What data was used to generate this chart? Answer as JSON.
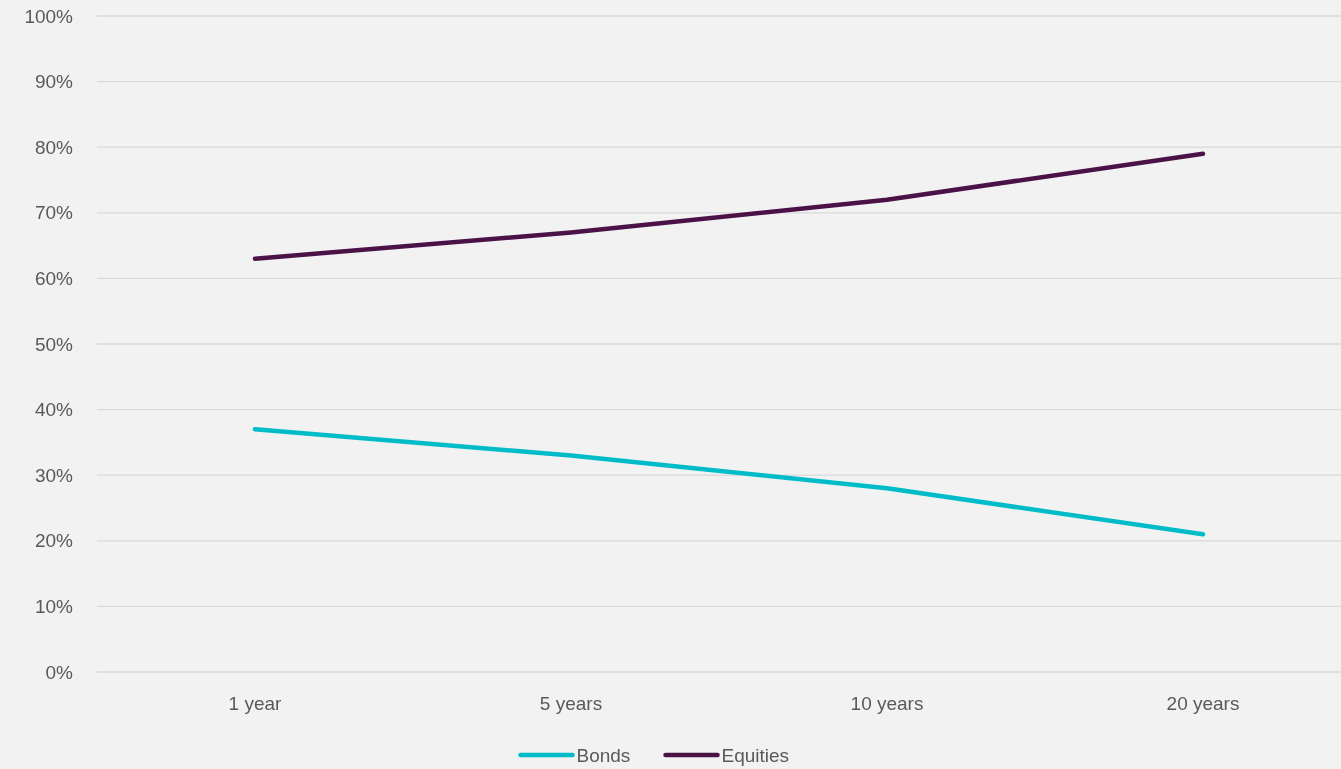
{
  "chart_data": {
    "type": "line",
    "categories": [
      "1 year",
      "5 years",
      "10 years",
      "20 years"
    ],
    "series": [
      {
        "name": "Bonds",
        "color": "#00bcc9",
        "values": [
          37,
          33,
          28,
          21
        ]
      },
      {
        "name": "Equities",
        "color": "#4b1248",
        "values": [
          63,
          67,
          72,
          79
        ]
      }
    ],
    "ylim": [
      0,
      100
    ],
    "yticks": [
      {
        "value": 0,
        "label": "0%"
      },
      {
        "value": 10,
        "label": "10%"
      },
      {
        "value": 20,
        "label": "20%"
      },
      {
        "value": 30,
        "label": "30%"
      },
      {
        "value": 40,
        "label": "40%"
      },
      {
        "value": 50,
        "label": "50%"
      },
      {
        "value": 60,
        "label": "60%"
      },
      {
        "value": 70,
        "label": "70%"
      },
      {
        "value": 80,
        "label": "80%"
      },
      {
        "value": 90,
        "label": "90%"
      },
      {
        "value": 100,
        "label": "100%"
      }
    ],
    "grid": "y",
    "legend": "bottom",
    "marker": "none",
    "line_style": "solid"
  }
}
